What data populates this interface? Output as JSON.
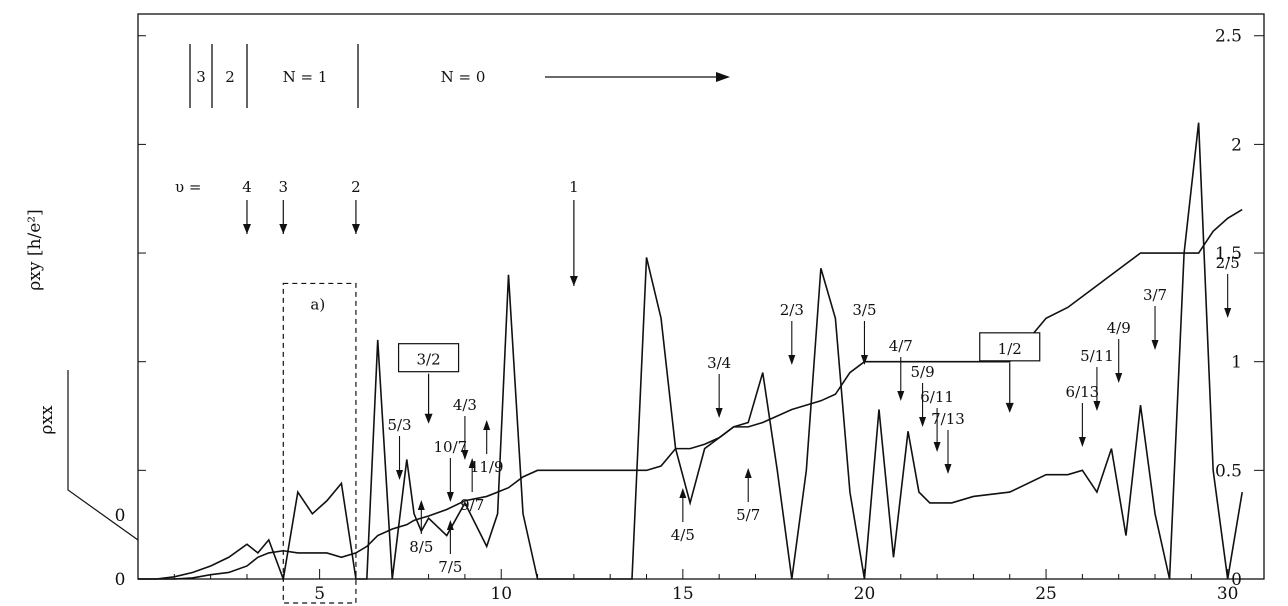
{
  "chart_data": {
    "type": "line",
    "x_ticks": [
      5,
      10,
      15,
      20,
      25,
      30
    ],
    "xlim": [
      0,
      31
    ],
    "y_ticks_right": [
      0,
      0.5,
      1,
      1.5,
      2,
      2.5
    ],
    "y_ticks_right_labels": [
      "0",
      "0.5",
      "1",
      "1.5",
      "2",
      "2.5"
    ],
    "ylim": [
      0,
      2.6
    ],
    "rho_xx_zero_label": "0",
    "ylabel_hall": "ρxy [h/e²]",
    "ylabel_long": "ρxx",
    "landau_levels": {
      "n3": "3",
      "n2": "2",
      "n1": "N = 1",
      "n0": "N = 0"
    },
    "filling_label": "υ =",
    "integer_fillings": [
      {
        "label": "4",
        "x": 3.0
      },
      {
        "label": "3",
        "x": 4.0
      },
      {
        "label": "2",
        "x": 6.0
      },
      {
        "label": "1",
        "x": 12.0
      }
    ],
    "inset_label": "a)",
    "boxed_labels": [
      {
        "label": "3/2",
        "x": 8.0,
        "y": 1.0
      },
      {
        "label": "1/2",
        "x": 24.0,
        "y": 1.05
      }
    ],
    "down_arrow_labels": [
      {
        "label": "3/4",
        "x": 16.0
      },
      {
        "label": "2/3",
        "x": 18.0
      },
      {
        "label": "3/5",
        "x": 20.0
      },
      {
        "label": "4/7",
        "x": 21.0
      },
      {
        "label": "5/9",
        "x": 21.6
      },
      {
        "label": "6/11",
        "x": 22.0
      },
      {
        "label": "7/13",
        "x": 22.3
      },
      {
        "label": "6/13",
        "x": 26.0
      },
      {
        "label": "5/11",
        "x": 26.4
      },
      {
        "label": "4/9",
        "x": 27.0
      },
      {
        "label": "3/7",
        "x": 28.0
      },
      {
        "label": "2/5",
        "x": 30.0
      },
      {
        "label": "5/3",
        "x": 7.2
      },
      {
        "label": "10/7",
        "x": 8.6
      },
      {
        "label": "4/3",
        "x": 9.0
      }
    ],
    "up_arrow_labels": [
      {
        "label": "4/5",
        "x": 15.0
      },
      {
        "label": "5/7",
        "x": 16.8
      },
      {
        "label": "8/5",
        "x": 7.8
      },
      {
        "label": "7/5",
        "x": 8.6
      },
      {
        "label": "9/7",
        "x": 9.2
      },
      {
        "label": "11/9",
        "x": 9.6
      }
    ],
    "series": [
      {
        "x": [
          0,
          0.5,
          1.0,
          1.5,
          2.0,
          2.5,
          3.0,
          3.3,
          3.6,
          4.0,
          4.4,
          4.8,
          5.2,
          5.6,
          6.0,
          6.3,
          6.6,
          7.0,
          7.4,
          7.6,
          7.8,
          8.0,
          8.5,
          9.0,
          9.6,
          9.9,
          10.2,
          10.6,
          11.0,
          12.0,
          13.0,
          13.6,
          14.0,
          14.4,
          14.8,
          15.2,
          15.6,
          16.0,
          16.4,
          16.8,
          17.2,
          17.6,
          18.0,
          18.4,
          18.8,
          19.2,
          19.6,
          20.0,
          20.4,
          20.8,
          21.2,
          21.5,
          21.8,
          22.0,
          22.4,
          23.0,
          24.0,
          25.0,
          25.6,
          26.0,
          26.4,
          26.8,
          27.2,
          27.6,
          28.0,
          28.4,
          28.8,
          29.2,
          29.6,
          30.0,
          30.4
        ],
        "values": [
          0,
          0,
          0,
          0.005,
          0.02,
          0.03,
          0.06,
          0.1,
          0.12,
          0.13,
          0.12,
          0.12,
          0.12,
          0.1,
          0.12,
          0.15,
          0.2,
          0.23,
          0.25,
          0.27,
          0.28,
          0.29,
          0.32,
          0.36,
          0.38,
          0.4,
          0.42,
          0.47,
          0.5,
          0.5,
          0.5,
          0.5,
          0.5,
          0.52,
          0.6,
          0.6,
          0.62,
          0.65,
          0.7,
          0.7,
          0.72,
          0.75,
          0.78,
          0.8,
          0.82,
          0.85,
          0.95,
          1.0,
          1.0,
          1.0,
          1.0,
          1.0,
          1.0,
          1.0,
          1.0,
          1.0,
          1.0,
          1.2,
          1.25,
          1.3,
          1.35,
          1.4,
          1.45,
          1.5,
          1.5,
          1.5,
          1.5,
          1.5,
          1.6,
          1.66,
          1.7
        ]
      },
      {
        "x": [
          0,
          0.5,
          1.0,
          1.5,
          2.0,
          2.5,
          3.0,
          3.3,
          3.6,
          4.0,
          4.4,
          4.8,
          5.2,
          5.6,
          6.0,
          6.3,
          6.6,
          7.0,
          7.4,
          7.6,
          7.8,
          8.0,
          8.5,
          9.0,
          9.6,
          9.9,
          10.2,
          10.6,
          11.0,
          12.0,
          13.0,
          13.6,
          14.0,
          14.4,
          14.8,
          15.2,
          15.6,
          16.0,
          16.4,
          16.8,
          17.2,
          17.6,
          18.0,
          18.4,
          18.8,
          19.2,
          19.6,
          20.0,
          20.4,
          20.8,
          21.2,
          21.5,
          21.8,
          22.0,
          22.4,
          23.0,
          24.0,
          25.0,
          25.6,
          26.0,
          26.4,
          26.8,
          27.2,
          27.6,
          28.0,
          28.4,
          28.8,
          29.2,
          29.6,
          30.0,
          30.4
        ],
        "values": [
          0,
          0,
          0.01,
          0.03,
          0.06,
          0.1,
          0.16,
          0.12,
          0.18,
          0.0,
          0.4,
          0.3,
          0.36,
          0.44,
          0.0,
          0.0,
          1.1,
          0.0,
          0.55,
          0.3,
          0.22,
          0.28,
          0.2,
          0.35,
          0.15,
          0.3,
          1.4,
          0.3,
          0.0,
          0.0,
          0.0,
          0.0,
          1.48,
          1.2,
          0.6,
          0.35,
          0.6,
          0.65,
          0.7,
          0.72,
          0.95,
          0.5,
          0.0,
          0.5,
          1.43,
          1.2,
          0.4,
          0.0,
          0.78,
          0.1,
          0.68,
          0.4,
          0.35,
          0.35,
          0.35,
          0.38,
          0.4,
          0.48,
          0.48,
          0.5,
          0.4,
          0.6,
          0.2,
          0.8,
          0.3,
          0.0,
          1.5,
          2.1,
          0.5,
          0.0,
          0.4
        ]
      }
    ]
  }
}
